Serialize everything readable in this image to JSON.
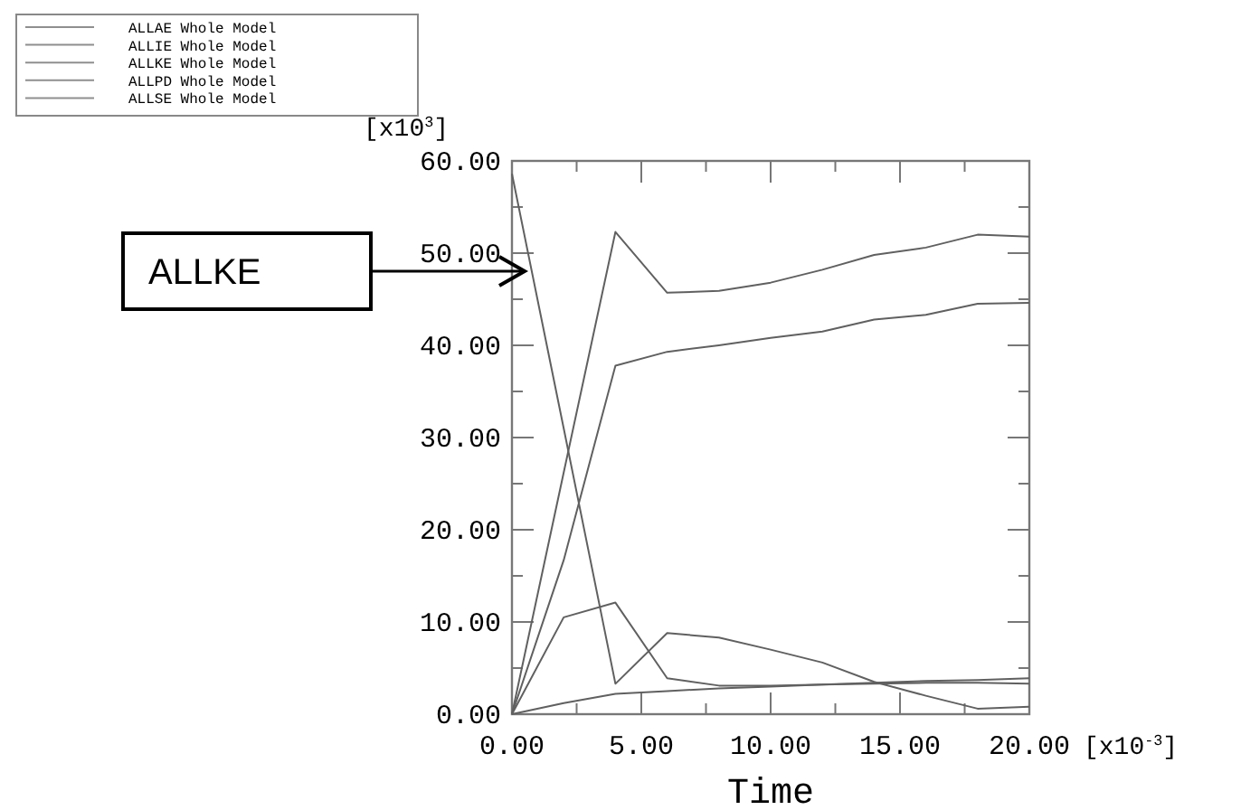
{
  "chart_data": {
    "type": "line",
    "xlabel": "Time",
    "ylabel": "[x10$^{3}$]",
    "x": [
      0,
      2,
      4,
      6,
      8,
      10,
      12,
      14,
      16,
      18,
      20
    ],
    "series": [
      {
        "name": "ALLAE Whole Model",
        "color": "#606060",
        "values": [
          0,
          1.2,
          2.2,
          2.5,
          2.8,
          3.0,
          3.2,
          3.4,
          3.6,
          3.7,
          3.9
        ]
      },
      {
        "name": "ALLIE Whole Model",
        "color": "#606060",
        "values": [
          0,
          26.2,
          52.3,
          45.7,
          45.9,
          46.8,
          48.2,
          49.8,
          50.6,
          52,
          51.8
        ]
      },
      {
        "name": "ALLKE Whole Model",
        "color": "#606060",
        "values": [
          58.6,
          31,
          3.3,
          8.8,
          8.3,
          7.0,
          5.6,
          3.5,
          2.0,
          0.6,
          0.8
        ]
      },
      {
        "name": "ALLPD Whole Model",
        "color": "#606060",
        "values": [
          0,
          16.7,
          37.8,
          39.3,
          40.0,
          40.8,
          41.5,
          42.8,
          43.3,
          44.5,
          44.6
        ]
      },
      {
        "name": "ALLSE Whole Model",
        "color": "#606060",
        "values": [
          0,
          10.5,
          12.1,
          3.9,
          3.1,
          3.1,
          3.2,
          3.3,
          3.4,
          3.4,
          3.3
        ]
      }
    ],
    "xlim": [
      0,
      20
    ],
    "ylim": [
      0,
      60
    ],
    "xticks": [
      {
        "value": 0,
        "label": "0.00"
      },
      {
        "value": 2.5,
        "label": null
      },
      {
        "value": 5,
        "label": "5.00"
      },
      {
        "value": 7.5,
        "label": null
      },
      {
        "value": 10,
        "label": "10.00"
      },
      {
        "value": 12.5,
        "label": null
      },
      {
        "value": 15,
        "label": "15.00"
      },
      {
        "value": 17.5,
        "label": null
      },
      {
        "value": 20,
        "label": "20.00"
      }
    ],
    "yticks": [
      {
        "value": 0,
        "label": "0.00"
      },
      {
        "value": 5,
        "label": null
      },
      {
        "value": 10,
        "label": "10.00"
      },
      {
        "value": 15,
        "label": null
      },
      {
        "value": 20,
        "label": "20.00"
      },
      {
        "value": 25,
        "label": null
      },
      {
        "value": 30,
        "label": "30.00"
      },
      {
        "value": 35,
        "label": null
      },
      {
        "value": 40,
        "label": "40.00"
      },
      {
        "value": 45,
        "label": null
      },
      {
        "value": 50,
        "label": "50.00"
      },
      {
        "value": 55,
        "label": null
      },
      {
        "value": 60,
        "label": "60.00"
      }
    ],
    "annotations": [
      "[x10$^{-3}$]",
      "ALLKE"
    ],
    "grid": false,
    "legend": "top left",
    "marker": "none",
    "line_style": "solid"
  }
}
